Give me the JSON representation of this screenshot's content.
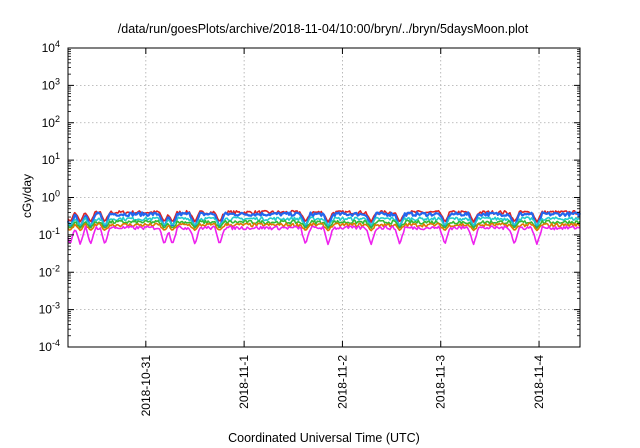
{
  "chart_data": {
    "type": "line",
    "title": "/data/run/goesPlots/archive/2018-11-04/10:00/bryn/../bryn/5daysMoon.plot",
    "xlabel": "Coordinated Universal Time (UTC)",
    "ylabel": "cGy/day",
    "yscale": "log",
    "ylim": [
      0.0001,
      10000
    ],
    "xlim": [
      "2018-10-30T05:00",
      "2018-11-04T10:00"
    ],
    "grid": true,
    "y_ticks": [
      {
        "base": "10",
        "exp": "-4",
        "value": 0.0001
      },
      {
        "base": "10",
        "exp": "-3",
        "value": 0.001
      },
      {
        "base": "10",
        "exp": "-2",
        "value": 0.01
      },
      {
        "base": "10",
        "exp": "-1",
        "value": 0.1
      },
      {
        "base": "10",
        "exp": "0",
        "value": 1
      },
      {
        "base": "10",
        "exp": "1",
        "value": 10
      },
      {
        "base": "10",
        "exp": "2",
        "value": 100
      },
      {
        "base": "10",
        "exp": "3",
        "value": 1000
      },
      {
        "base": "10",
        "exp": "4",
        "value": 10000
      }
    ],
    "x_ticks": [
      {
        "label": "2018-10-31",
        "value": "2018-10-31T00:00"
      },
      {
        "label": "2018-11-1",
        "value": "2018-11-01T00:00"
      },
      {
        "label": "2018-11-2",
        "value": "2018-11-02T00:00"
      },
      {
        "label": "2018-11-3",
        "value": "2018-11-03T00:00"
      },
      {
        "label": "2018-11-4",
        "value": "2018-11-04T00:00"
      }
    ],
    "dips": [
      "2018-10-30T05:30",
      "2018-10-30T08:00",
      "2018-10-30T10:30",
      "2018-10-30T14:00",
      "2018-10-31T04:30",
      "2018-10-31T06:30",
      "2018-10-31T12:00",
      "2018-10-31T18:00",
      "2018-11-01T15:00",
      "2018-11-01T20:30",
      "2018-11-02T07:00",
      "2018-11-02T14:00",
      "2018-11-03T01:00",
      "2018-11-03T08:00",
      "2018-11-03T18:00",
      "2018-11-03T23:30"
    ],
    "series": [
      {
        "color": "#dd2222",
        "level": 0.4,
        "dip": 0.22
      },
      {
        "color": "#2266ee",
        "level": 0.36,
        "dip": 0.16
      },
      {
        "color": "#22cccc",
        "level": 0.27,
        "dip": 0.18
      },
      {
        "color": "#33bb33",
        "level": 0.22,
        "dip": 0.15
      },
      {
        "color": "#dd7700",
        "level": 0.185,
        "dip": 0.13
      },
      {
        "color": "#ee22ee",
        "level": 0.155,
        "dip": 0.055
      }
    ]
  }
}
